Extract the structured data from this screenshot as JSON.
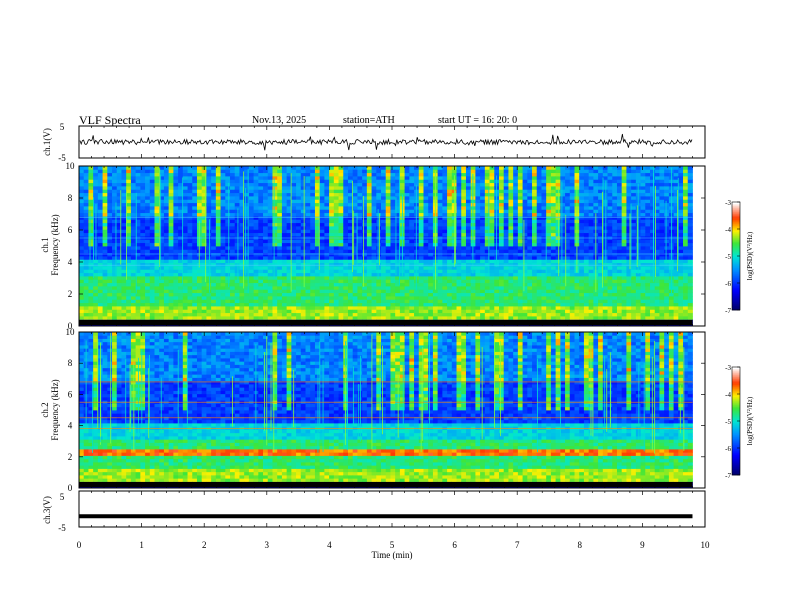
{
  "header": {
    "title": "VLF  Spectra",
    "date": "Nov.13, 2025",
    "station": "station=ATH",
    "start": "start  UT  =    16: 20: 0"
  },
  "chart_data": [
    {
      "type": "line",
      "panel": "ch1-waveform",
      "ylabel": "ch.1(V)",
      "yticks": [
        "5",
        "-5"
      ],
      "ylim": [
        -5,
        5
      ],
      "xlim": [
        0,
        10
      ],
      "description_values": {
        "baseline": 0,
        "typical_amplitude": 1
      }
    },
    {
      "type": "heatmap",
      "panel": "ch1-spectrogram",
      "ylabel": "ch.1\nFrequency (kHz)",
      "ylabel_lines": [
        "ch.1",
        "Frequency  (kHz)"
      ],
      "yticks": [
        "0",
        "2",
        "4",
        "6",
        "8",
        "10"
      ],
      "ylim": [
        0,
        10
      ],
      "xlim": [
        0,
        9.8
      ],
      "colorbar": {
        "label": "log(PSD)(V²/Hz)",
        "ticks": [
          "-3",
          "-4",
          "-5",
          "-6",
          "-7"
        ],
        "range": [
          -7,
          -3
        ]
      }
    },
    {
      "type": "heatmap",
      "panel": "ch2-spectrogram",
      "ylabel_lines": [
        "ch.2",
        "Frequency  (kHz)"
      ],
      "yticks": [
        "0",
        "2",
        "4",
        "6",
        "8",
        "10"
      ],
      "ylim": [
        0,
        10
      ],
      "xlim": [
        0,
        9.8
      ],
      "colorbar": {
        "label": "log(PSD)(V²/Hz)",
        "ticks": [
          "-3",
          "-4",
          "-5",
          "-6",
          "-7"
        ],
        "range": [
          -7,
          -3
        ]
      }
    },
    {
      "type": "line",
      "panel": "ch3-waveform",
      "ylabel": "ch.3(V)",
      "yticks": [
        "5",
        "-5"
      ],
      "ylim": [
        -5,
        5
      ],
      "xlim": [
        0,
        10
      ],
      "values_const": -2
    }
  ],
  "xaxis": {
    "label": "Time  (min)",
    "ticks": [
      "0",
      "1",
      "2",
      "3",
      "4",
      "5",
      "6",
      "7",
      "8",
      "9",
      "10"
    ]
  }
}
